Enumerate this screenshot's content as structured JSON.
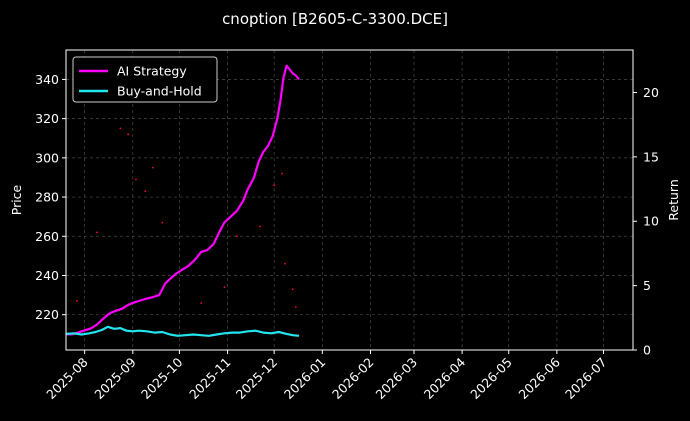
{
  "chart_data": {
    "type": "line",
    "title": "cnoption [B2605-C-3300.DCE]",
    "xlabel": "",
    "ylabel": "Price",
    "y2label": "Return",
    "background": "#000000",
    "grid": true,
    "legend_position": "upper-left",
    "x_range": [
      "2025-07-20",
      "2026-07-20"
    ],
    "ylim": [
      202,
      355
    ],
    "y2lim": [
      0,
      23.3
    ],
    "x_ticks": [
      "2025-08",
      "2025-09",
      "2025-10",
      "2025-11",
      "2025-12",
      "2026-01",
      "2026-02",
      "2026-03",
      "2026-04",
      "2026-05",
      "2026-06",
      "2026-07"
    ],
    "y_ticks": [
      "220",
      "240",
      "260",
      "280",
      "300",
      "320",
      "340"
    ],
    "y2_ticks": [
      "0",
      "5",
      "10",
      "15",
      "20"
    ],
    "series": [
      {
        "name": "AI Strategy",
        "color": "#ff00ff",
        "axis": "price",
        "x": [
          "2025-07-20",
          "2025-07-24",
          "2025-07-28",
          "2025-08-01",
          "2025-08-05",
          "2025-08-09",
          "2025-08-13",
          "2025-08-16",
          "2025-08-18",
          "2025-08-21",
          "2025-08-25",
          "2025-08-29",
          "2025-09-01",
          "2025-09-05",
          "2025-09-09",
          "2025-09-14",
          "2025-09-18",
          "2025-09-22",
          "2025-09-26",
          "2025-09-29",
          "2025-10-03",
          "2025-10-07",
          "2025-10-11",
          "2025-10-15",
          "2025-10-19",
          "2025-10-23",
          "2025-10-26",
          "2025-10-30",
          "2025-11-03",
          "2025-11-07",
          "2025-11-11",
          "2025-11-14",
          "2025-11-18",
          "2025-11-21",
          "2025-11-24",
          "2025-11-27",
          "2025-11-30",
          "2025-12-03",
          "2025-12-05",
          "2025-12-07",
          "2025-12-09",
          "2025-12-11",
          "2025-12-13",
          "2025-12-15",
          "2025-12-17"
        ],
        "values": [
          210,
          210,
          211,
          212,
          213,
          215,
          218,
          220,
          221,
          222,
          223,
          225,
          226,
          227,
          228,
          229,
          230,
          236,
          239,
          241,
          243,
          245,
          248,
          252,
          253,
          256,
          261,
          267,
          270,
          273,
          278,
          284,
          290,
          298,
          303,
          306,
          311,
          320,
          329,
          341,
          347,
          345,
          343,
          342,
          340
        ]
      },
      {
        "name": "Buy-and-Hold",
        "color": "#22e5ef",
        "axis": "return",
        "x": [
          "2025-07-20",
          "2025-07-25",
          "2025-07-30",
          "2025-08-04",
          "2025-08-08",
          "2025-08-12",
          "2025-08-16",
          "2025-08-20",
          "2025-08-24",
          "2025-08-28",
          "2025-09-01",
          "2025-09-05",
          "2025-09-10",
          "2025-09-15",
          "2025-09-20",
          "2025-09-25",
          "2025-09-30",
          "2025-10-05",
          "2025-10-10",
          "2025-10-15",
          "2025-10-20",
          "2025-10-25",
          "2025-10-30",
          "2025-11-04",
          "2025-11-09",
          "2025-11-14",
          "2025-11-19",
          "2025-11-24",
          "2025-11-29",
          "2025-12-04",
          "2025-12-09",
          "2025-12-13",
          "2025-12-17"
        ],
        "values": [
          1.25,
          1.3,
          1.2,
          1.3,
          1.4,
          1.55,
          1.8,
          1.65,
          1.7,
          1.5,
          1.45,
          1.5,
          1.45,
          1.35,
          1.4,
          1.2,
          1.1,
          1.15,
          1.2,
          1.15,
          1.1,
          1.2,
          1.3,
          1.35,
          1.35,
          1.45,
          1.5,
          1.35,
          1.3,
          1.4,
          1.25,
          1.15,
          1.1
        ]
      }
    ],
    "signal_markers": {
      "color": "#ff0040",
      "x": [
        "2025-07-27",
        "2025-08-09",
        "2025-08-24",
        "2025-08-29",
        "2025-09-03",
        "2025-09-09",
        "2025-09-14",
        "2025-09-20",
        "2025-10-15",
        "2025-10-30",
        "2025-11-07",
        "2025-11-22",
        "2025-12-01",
        "2025-12-06",
        "2025-12-08",
        "2025-12-13",
        "2025-12-15"
      ],
      "values": [
        227,
        262,
        315,
        312,
        289,
        283,
        295,
        267,
        226,
        234,
        260,
        265,
        286,
        292,
        246,
        233,
        224
      ]
    }
  }
}
